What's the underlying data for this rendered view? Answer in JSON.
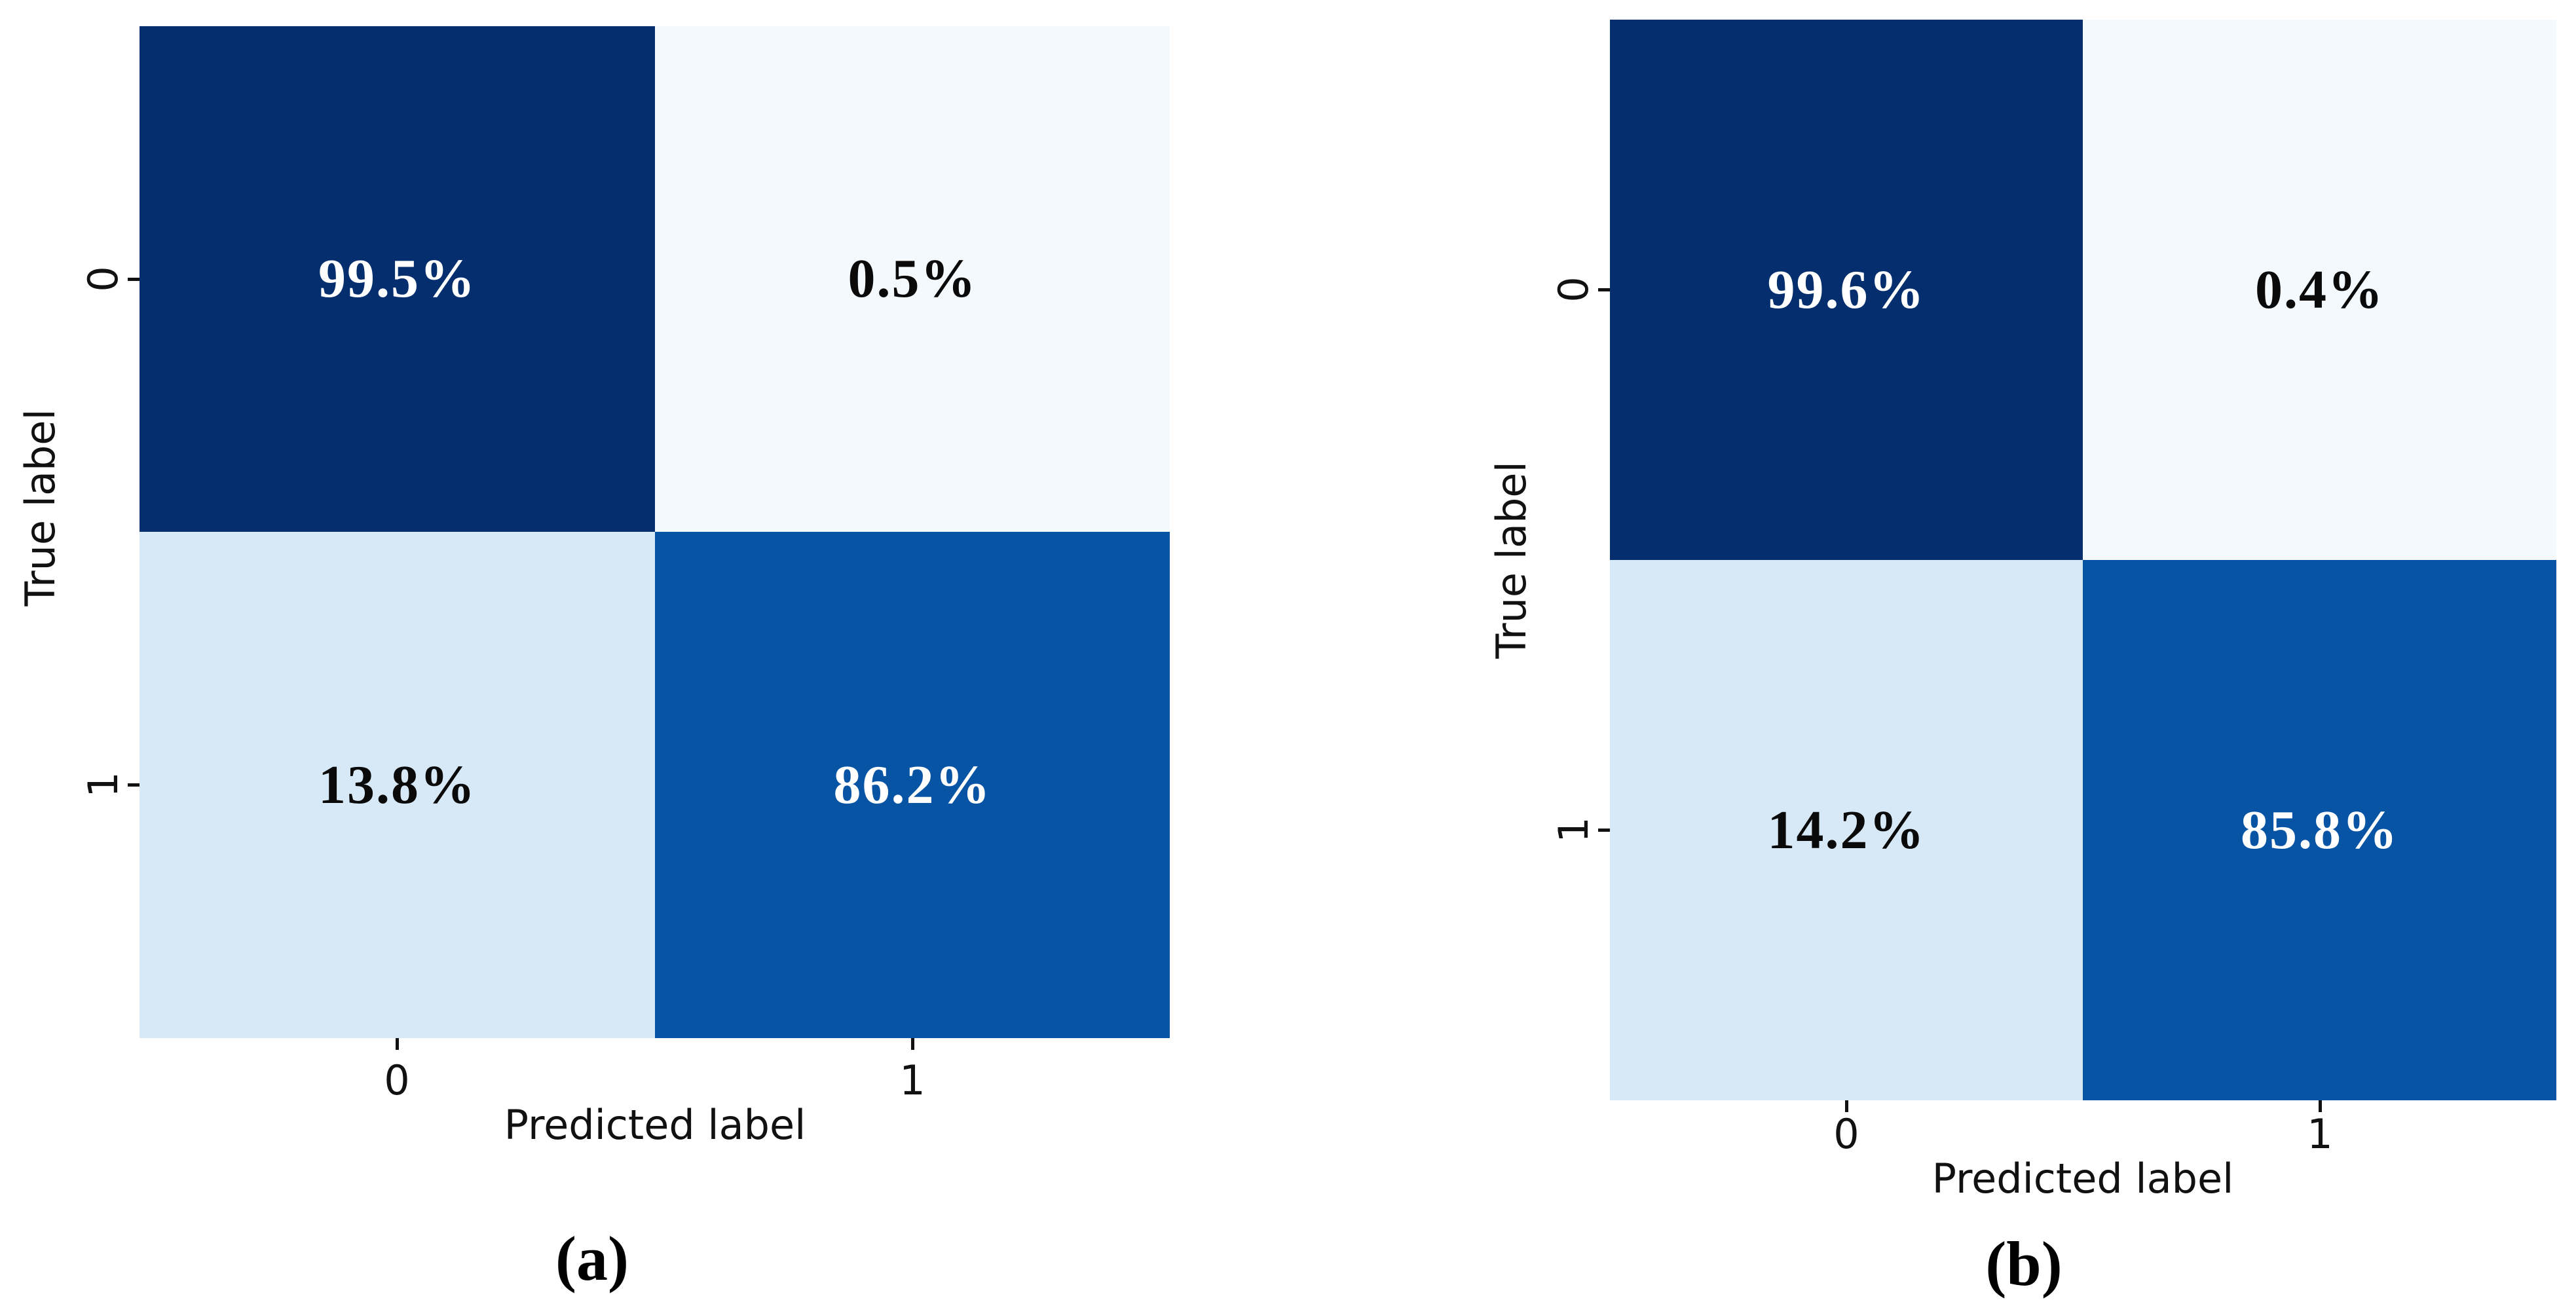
{
  "figure": {
    "background": "#ffffff",
    "panels": [
      {
        "id": "a",
        "caption": "(a)",
        "xlabel": "Predicted label",
        "ylabel": "True label",
        "xticks": [
          "0",
          "1"
        ],
        "yticks": [
          "0",
          "1"
        ],
        "cells": [
          {
            "label": "99.5%",
            "bg": "#042e6d",
            "fg": "#ffffff"
          },
          {
            "label": "0.5%",
            "bg": "#f4f9fd",
            "fg": "#0a0a0a"
          },
          {
            "label": "13.8%",
            "bg": "#d7e9f6",
            "fg": "#0a0a0a"
          },
          {
            "label": "86.2%",
            "bg": "#0754a4",
            "fg": "#ffffff"
          }
        ]
      },
      {
        "id": "b",
        "caption": "(b)",
        "xlabel": "Predicted label",
        "ylabel": "True label",
        "xticks": [
          "0",
          "1"
        ],
        "yticks": [
          "0",
          "1"
        ],
        "cells": [
          {
            "label": "99.6%",
            "bg": "#042e6d",
            "fg": "#ffffff"
          },
          {
            "label": "0.4%",
            "bg": "#f4f9fd",
            "fg": "#0a0a0a"
          },
          {
            "label": "14.2%",
            "bg": "#d7e9f6",
            "fg": "#0a0a0a"
          },
          {
            "label": "85.8%",
            "bg": "#0754a4",
            "fg": "#ffffff"
          }
        ]
      }
    ]
  },
  "chart_data": [
    {
      "type": "heatmap",
      "subtype": "confusion-matrix",
      "title": "(a)",
      "xlabel": "Predicted label",
      "ylabel": "True label",
      "x_categories": [
        "0",
        "1"
      ],
      "y_categories": [
        "0",
        "1"
      ],
      "values_percent": [
        [
          99.5,
          0.5
        ],
        [
          13.8,
          86.2
        ]
      ],
      "cell_labels": [
        [
          "99.5%",
          "0.5%"
        ],
        [
          "13.8%",
          "86.2%"
        ]
      ],
      "colormap": "Blues",
      "colorbar": "none",
      "grid": false,
      "legend_position": "none"
    },
    {
      "type": "heatmap",
      "subtype": "confusion-matrix",
      "title": "(b)",
      "xlabel": "Predicted label",
      "ylabel": "True label",
      "x_categories": [
        "0",
        "1"
      ],
      "y_categories": [
        "0",
        "1"
      ],
      "values_percent": [
        [
          99.6,
          0.4
        ],
        [
          14.2,
          85.8
        ]
      ],
      "cell_labels": [
        [
          "99.6%",
          "0.4%"
        ],
        [
          "14.2%",
          "85.8%"
        ]
      ],
      "colormap": "Blues",
      "colorbar": "none",
      "grid": false,
      "legend_position": "none"
    }
  ]
}
